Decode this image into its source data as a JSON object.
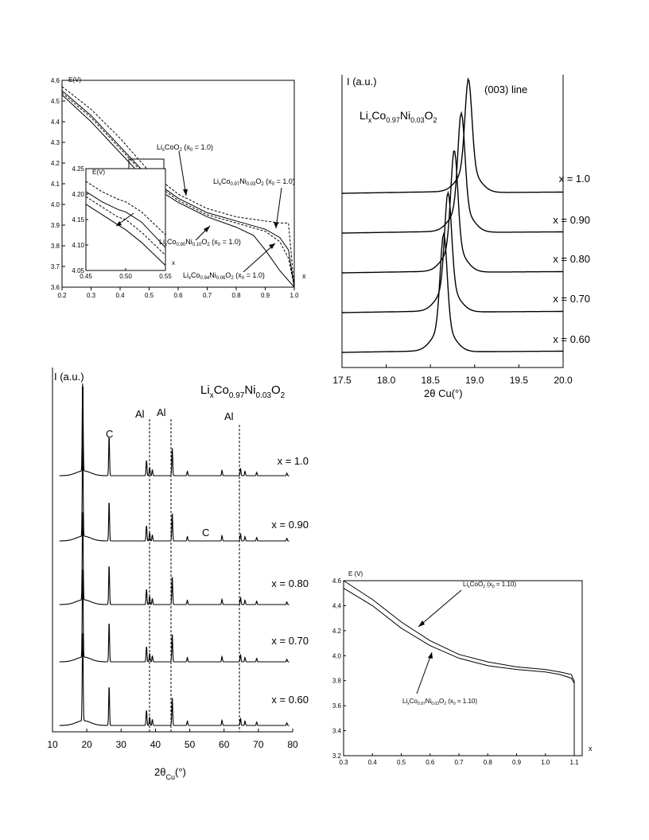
{
  "chart_data": [
    {
      "type": "line",
      "ylabel": "E(V)",
      "xlabel": "x",
      "xlim": [
        0.2,
        1.0
      ],
      "ylim": [
        3.6,
        4.6
      ],
      "x_ticks": [
        "0.2",
        "0.3",
        "0.4",
        "0.5",
        "0.6",
        "0.7",
        "0.8",
        "0.9",
        "1.0"
      ],
      "y_ticks": [
        "3.6",
        "3.7",
        "3.8",
        "3.9",
        "4.0",
        "4.1",
        "4.2",
        "4.3",
        "4.4",
        "4.5",
        "4.6"
      ],
      "annotations": {
        "a1": {
          "main": "Li",
          "s1": "x",
          "m2": "CoO",
          "s2": "2",
          "rest": " (x",
          "s3": "0",
          "end": " = 1.0)"
        },
        "a2": {
          "main": "Li",
          "s1": "x",
          "m2": "Co",
          "s2": "0.97",
          "m3": "Ni",
          "s3": "0.03",
          "m4": "O",
          "s4": "2",
          "rest": " (x",
          "s5": "0",
          "end": " = 1.0)"
        },
        "a3": {
          "main": "Li",
          "s1": "x",
          "m2": "Co",
          "s2": "0.90",
          "m3": "Ni",
          "s3": "0.10",
          "m4": "O",
          "s4": "2",
          "rest": " (x",
          "s5": "0",
          "end": " = 1.0)"
        },
        "a4": {
          "main": "Li",
          "s1": "x",
          "m2": "Co",
          "s2": "0.94",
          "m3": "Ni",
          "s3": "0.06",
          "m4": "O",
          "s4": "2",
          "rest": " (x",
          "s5": "0",
          "end": " = 1.0)"
        }
      },
      "series": [
        {
          "style": "dashed",
          "x": [
            0.2,
            0.3,
            0.4,
            0.5,
            0.6,
            0.7,
            0.8,
            0.9,
            0.95,
            0.98,
            1.0
          ],
          "y": [
            4.57,
            4.46,
            4.32,
            4.16,
            4.05,
            3.98,
            3.94,
            3.92,
            3.91,
            3.91,
            3.6
          ]
        },
        {
          "style": "solid",
          "x": [
            0.2,
            0.3,
            0.4,
            0.5,
            0.6,
            0.7,
            0.8,
            0.9,
            0.95,
            0.98,
            1.0
          ],
          "y": [
            4.55,
            4.43,
            4.28,
            4.13,
            4.03,
            3.96,
            3.92,
            3.88,
            3.84,
            3.78,
            3.6
          ]
        },
        {
          "style": "dashed",
          "x": [
            0.2,
            0.3,
            0.4,
            0.5,
            0.6,
            0.7,
            0.8,
            0.9,
            0.95,
            0.98,
            1.0
          ],
          "y": [
            4.54,
            4.42,
            4.27,
            4.12,
            4.02,
            3.95,
            3.91,
            3.87,
            3.82,
            3.74,
            3.6
          ]
        },
        {
          "style": "solid",
          "x": [
            0.2,
            0.3,
            0.4,
            0.5,
            0.6,
            0.7,
            0.8,
            0.86,
            0.9,
            0.95,
            1.0
          ],
          "y": [
            4.53,
            4.4,
            4.25,
            4.1,
            4.01,
            3.94,
            3.89,
            3.85,
            3.78,
            3.68,
            3.6
          ]
        }
      ],
      "inset": {
        "ylabel": "E(V)",
        "xlabel": "x",
        "xlim": [
          0.45,
          0.55
        ],
        "ylim": [
          4.05,
          4.25
        ],
        "x_ticks": [
          "0.45",
          "0.50",
          "0.55"
        ],
        "y_ticks": [
          "4.05",
          "4.10",
          "4.15",
          "4.20",
          "4.25"
        ],
        "series": [
          {
            "style": "dashed",
            "x": [
              0.45,
              0.47,
              0.49,
              0.5,
              0.52,
              0.55
            ],
            "y": [
              4.225,
              4.205,
              4.19,
              4.185,
              4.165,
              4.12
            ]
          },
          {
            "style": "solid",
            "x": [
              0.45,
              0.47,
              0.49,
              0.5,
              0.52,
              0.55
            ],
            "y": [
              4.205,
              4.185,
              4.17,
              4.165,
              4.145,
              4.095
            ]
          },
          {
            "style": "dashed",
            "x": [
              0.45,
              0.47,
              0.49,
              0.5,
              0.52,
              0.55
            ],
            "y": [
              4.195,
              4.175,
              4.155,
              4.15,
              4.125,
              4.08
            ]
          },
          {
            "style": "solid",
            "x": [
              0.45,
              0.47,
              0.49,
              0.5,
              0.52,
              0.55
            ],
            "y": [
              4.18,
              4.16,
              4.14,
              4.13,
              4.105,
              4.06
            ]
          }
        ]
      }
    },
    {
      "type": "line",
      "title": "(003) line",
      "ylabel": "I (a.u.)",
      "xlabel": "2θ Cu(°)",
      "formula": {
        "main": "Li",
        "s1": "x",
        "m2": "Co",
        "s2": "0.97",
        "m3": "Ni",
        "s3": "0.03",
        "m4": "O",
        "s4": "2"
      },
      "xlim": [
        17.5,
        20.0
      ],
      "x_ticks": [
        "17.5",
        "18.0",
        "18.5",
        "19.0",
        "19.5",
        "20.0"
      ],
      "series": [
        {
          "name": "x = 1.0",
          "peak": 18.93
        },
        {
          "name": "x = 0.90",
          "peak": 18.85
        },
        {
          "name": "x = 0.80",
          "peak": 18.77
        },
        {
          "name": "x = 0.70",
          "peak": 18.7
        },
        {
          "name": "x = 0.60",
          "peak": 18.65
        }
      ]
    },
    {
      "type": "line",
      "ylabel": "I (a.u.)",
      "xlabel": {
        "main": "2θ",
        "sub": "Cu",
        "end": "(°)"
      },
      "formula": {
        "main": "Li",
        "s1": "x",
        "m2": "Co",
        "s2": "0.97",
        "m3": "Ni",
        "s3": "0.03",
        "m4": "O",
        "s4": "2"
      },
      "xlim": [
        10,
        80
      ],
      "x_ticks": [
        "10",
        "20",
        "30",
        "40",
        "50",
        "60",
        "70",
        "80"
      ],
      "peak_labels": [
        "C",
        "Al",
        "Al",
        "Al",
        "C"
      ],
      "series": [
        {
          "name": "x = 1.0"
        },
        {
          "name": "x = 0.90"
        },
        {
          "name": "x = 0.80"
        },
        {
          "name": "x = 0.70"
        },
        {
          "name": "x = 0.60"
        }
      ],
      "peaks": [
        {
          "x": 18.8,
          "h": 1.0
        },
        {
          "x": 26.5,
          "h": 0.46
        },
        {
          "x": 37.4,
          "h": 0.18
        },
        {
          "x": 38.3,
          "h": 0.1
        },
        {
          "x": 39.1,
          "h": 0.07
        },
        {
          "x": 44.9,
          "h": 0.32
        },
        {
          "x": 49.3,
          "h": 0.05
        },
        {
          "x": 59.4,
          "h": 0.06
        },
        {
          "x": 64.8,
          "h": 0.08
        },
        {
          "x": 66.1,
          "h": 0.05
        },
        {
          "x": 69.5,
          "h": 0.04
        },
        {
          "x": 78.3,
          "h": 0.03
        }
      ]
    },
    {
      "type": "line",
      "ylabel": "E (V)",
      "xlabel": "x",
      "xlim": [
        0.3,
        1.1
      ],
      "ylim": [
        3.2,
        4.6
      ],
      "x_ticks": [
        "0.3",
        "0.4",
        "0.5",
        "0.6",
        "0.7",
        "0.8",
        "0.9",
        "1.0",
        "1.1"
      ],
      "y_ticks": [
        "3.2",
        "3.4",
        "3.6",
        "3.8",
        "4.0",
        "4.2",
        "4.4",
        "4.6"
      ],
      "annotations": {
        "b1": {
          "main": "Li",
          "s1": "x",
          "m2": "CoO",
          "s2": "2",
          "rest": " (x",
          "s3": "0",
          "end": " = 1.10)"
        },
        "b2": {
          "main": "Li",
          "s1": "x",
          "m2": "Co",
          "s2": "0.97",
          "m3": "Ni",
          "s3": "0.03",
          "m4": "O",
          "s4": "2",
          "rest": " (x",
          "s5": "0",
          "end": " = 1.10)"
        }
      },
      "series": [
        {
          "x": [
            0.3,
            0.4,
            0.5,
            0.6,
            0.7,
            0.8,
            0.9,
            1.0,
            1.05,
            1.09,
            1.095,
            1.1,
            1.1
          ],
          "y": [
            4.6,
            4.45,
            4.27,
            4.12,
            4.01,
            3.95,
            3.91,
            3.89,
            3.87,
            3.85,
            3.82,
            3.8,
            3.2
          ]
        },
        {
          "x": [
            0.3,
            0.4,
            0.5,
            0.6,
            0.7,
            0.8,
            0.9,
            1.0,
            1.05,
            1.09,
            1.095,
            1.1,
            1.1
          ],
          "y": [
            4.54,
            4.4,
            4.22,
            4.08,
            3.98,
            3.92,
            3.89,
            3.87,
            3.85,
            3.82,
            3.8,
            3.78,
            3.2
          ]
        }
      ]
    }
  ]
}
